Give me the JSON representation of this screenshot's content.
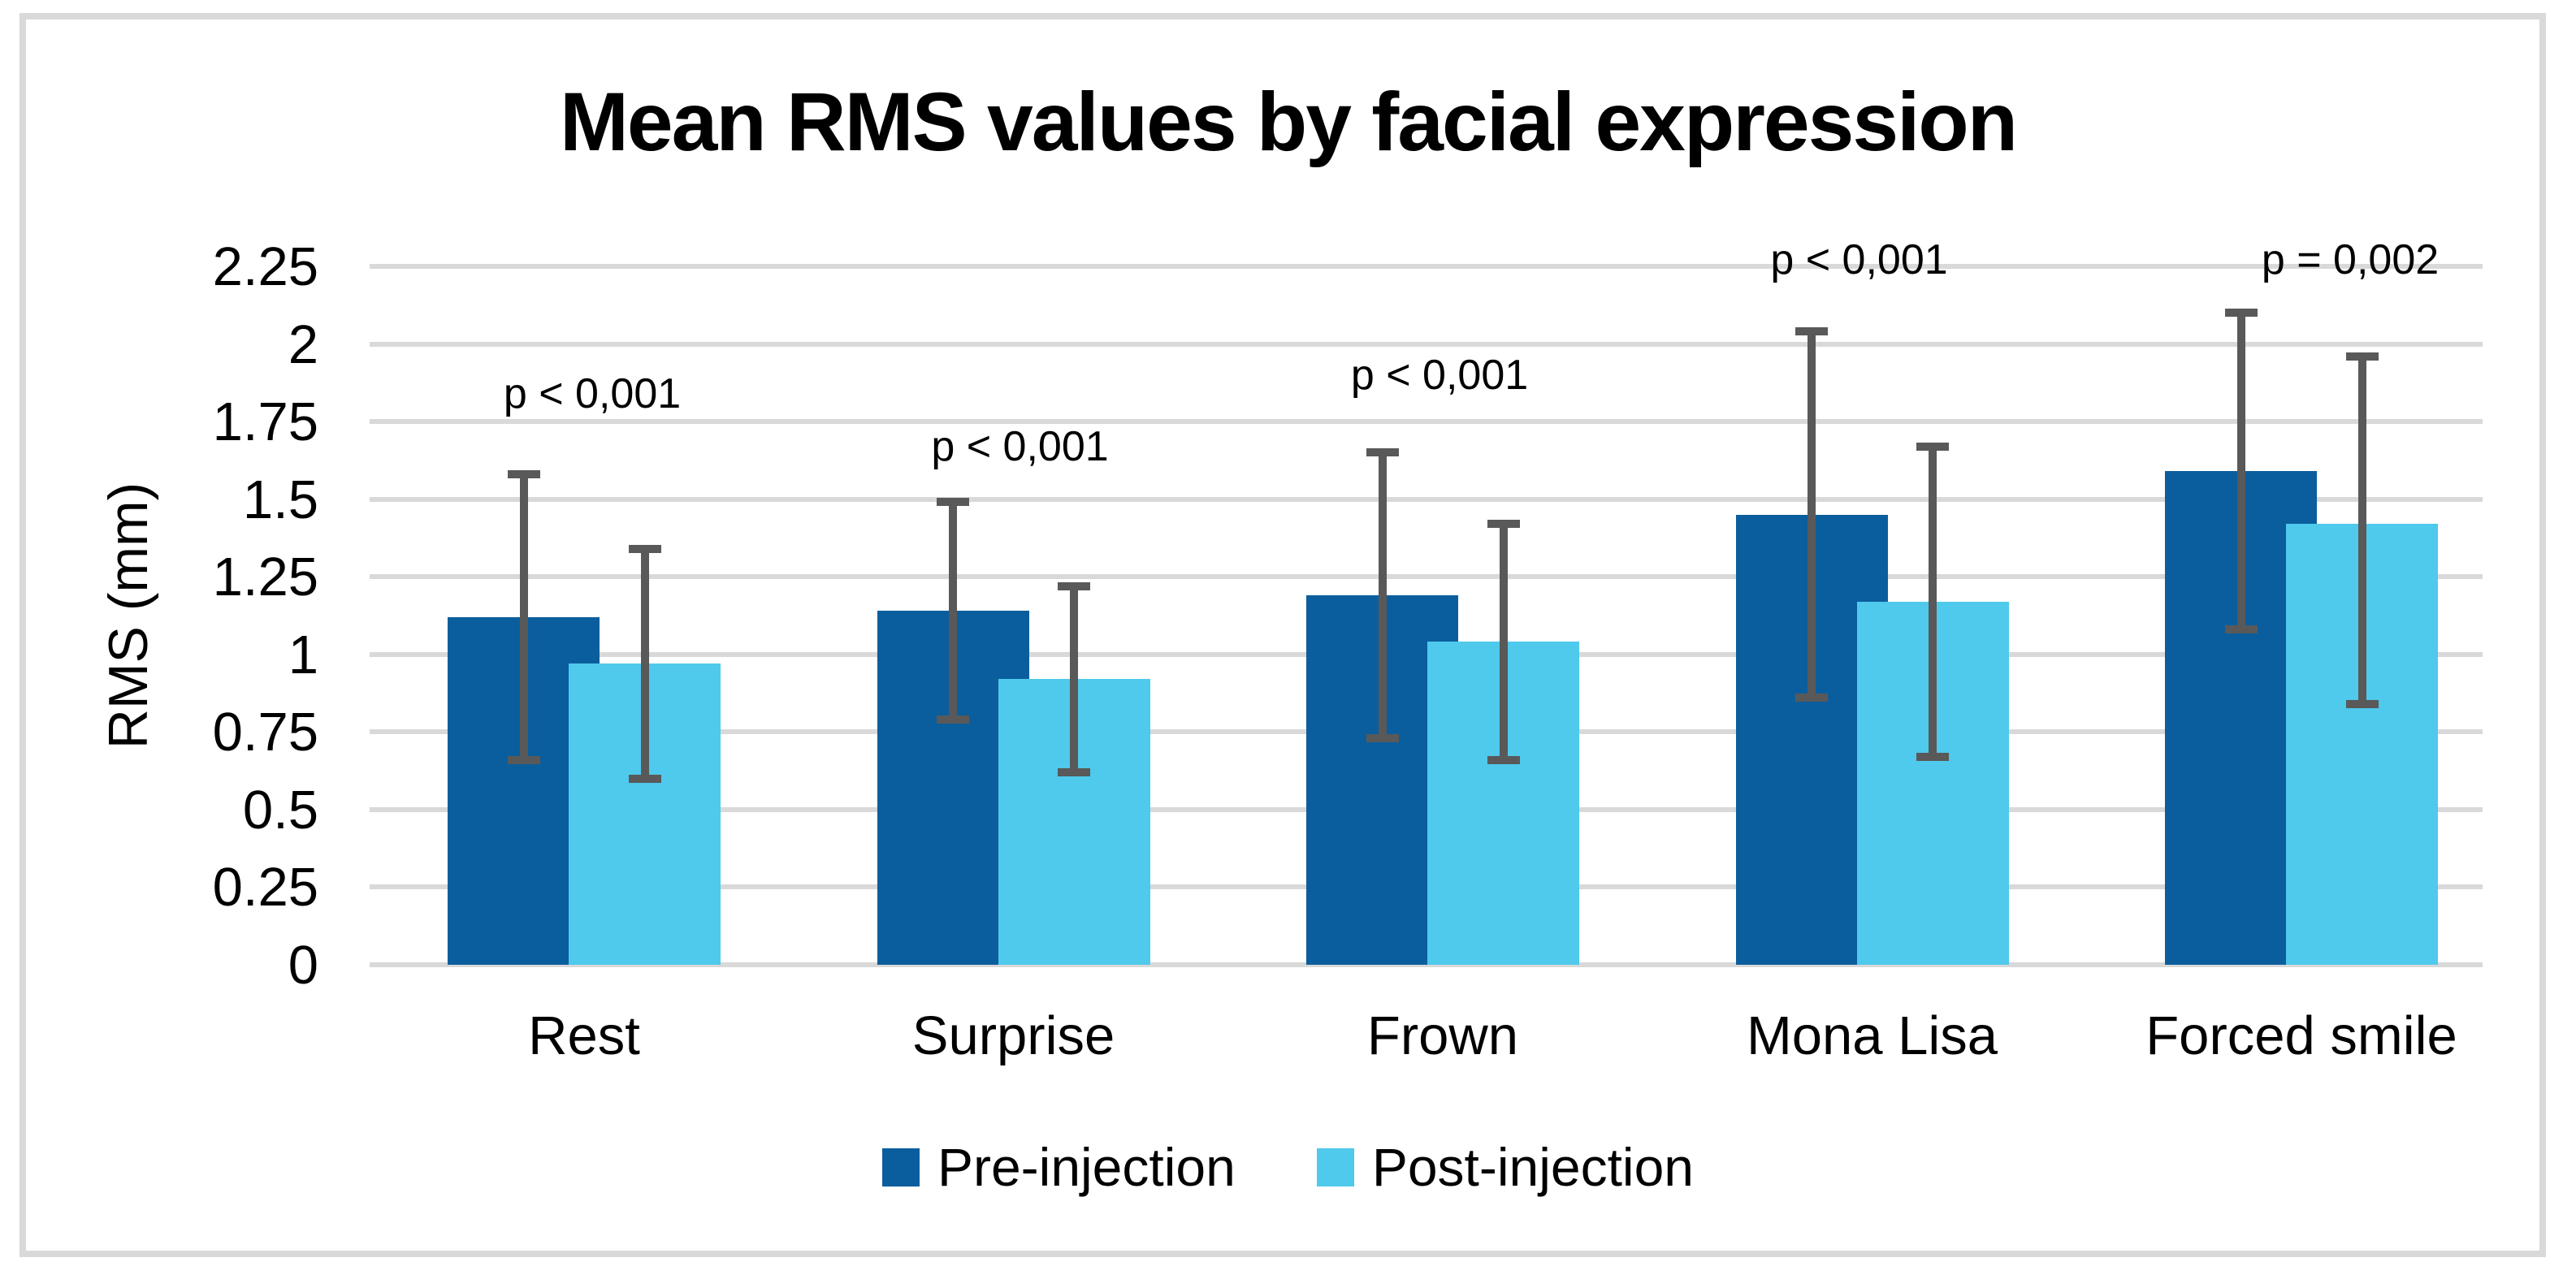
{
  "chart_data": {
    "type": "bar",
    "title": "Mean RMS values by facial expression",
    "ylabel": "RMS (mm)",
    "xlabel": "",
    "ylim": [
      0,
      2.25
    ],
    "ytick_step": 0.25,
    "ytick_labels": [
      "0",
      "0.25",
      "0.5",
      "0.75",
      "1",
      "1.25",
      "1.5",
      "1.75",
      "2",
      "2.25"
    ],
    "grid": true,
    "legend_position": "bottom",
    "grid_color": "#D9D9D9",
    "error_bar_color": "#595959",
    "categories": [
      "Rest",
      "Surprise",
      "Frown",
      "Mona Lisa",
      "Forced smile"
    ],
    "series": [
      {
        "name": "Pre-injection",
        "color": "#0B5E9D",
        "values": [
          1.12,
          1.14,
          1.19,
          1.45,
          1.59
        ],
        "error_low": [
          0.66,
          0.79,
          0.73,
          0.86,
          1.08
        ],
        "error_high": [
          1.58,
          1.49,
          1.65,
          2.04,
          2.1
        ]
      },
      {
        "name": "Post-injection",
        "color": "#4FC9EC",
        "values": [
          0.97,
          0.92,
          1.04,
          1.17,
          1.42
        ],
        "error_low": [
          0.6,
          0.62,
          0.66,
          0.67,
          0.84
        ],
        "error_high": [
          1.34,
          1.22,
          1.42,
          1.67,
          1.96
        ]
      }
    ],
    "annotations": [
      {
        "text": "p < 0,001",
        "category": "Rest",
        "y": 1.84
      },
      {
        "text": "p < 0,001",
        "category": "Surprise",
        "y": 1.67
      },
      {
        "text": "p < 0,001",
        "category": "Frown",
        "y": 1.9
      },
      {
        "text": "p < 0,001",
        "category": "Mona Lisa",
        "y": 2.27
      },
      {
        "text": "p = 0,002",
        "category": "Forced smile",
        "y": 2.27
      }
    ]
  }
}
